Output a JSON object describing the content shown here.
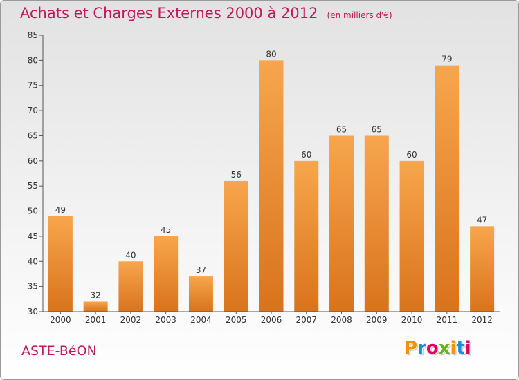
{
  "header": {
    "title": "Achats et Charges Externes 2000 à 2012",
    "unit": "(en milliers d'€)"
  },
  "footer": {
    "commune": "ASTE-BéON",
    "logo": {
      "letters": [
        "P",
        "r",
        "o",
        "x",
        "i",
        "t",
        "i"
      ],
      "colors": [
        "#f29400",
        "#1a8fd1",
        "#e2005a",
        "#6ab023",
        "#f29400",
        "#1a8fd1",
        "#e2005a"
      ]
    }
  },
  "chart_data": {
    "type": "bar",
    "categories": [
      "2000",
      "2001",
      "2002",
      "2003",
      "2004",
      "2005",
      "2006",
      "2007",
      "2008",
      "2009",
      "2010",
      "2011",
      "2012"
    ],
    "values": [
      49,
      32,
      40,
      45,
      37,
      56,
      80,
      60,
      65,
      65,
      60,
      79,
      47
    ],
    "ylim": [
      30,
      85
    ],
    "yticks": [
      30,
      35,
      40,
      45,
      50,
      55,
      60,
      65,
      70,
      75,
      80,
      85
    ],
    "grid": false,
    "colors": {
      "bar_light": "#f7a64d",
      "bar_dark": "#d9731c",
      "axis": "#555555",
      "text": "#333333"
    }
  }
}
